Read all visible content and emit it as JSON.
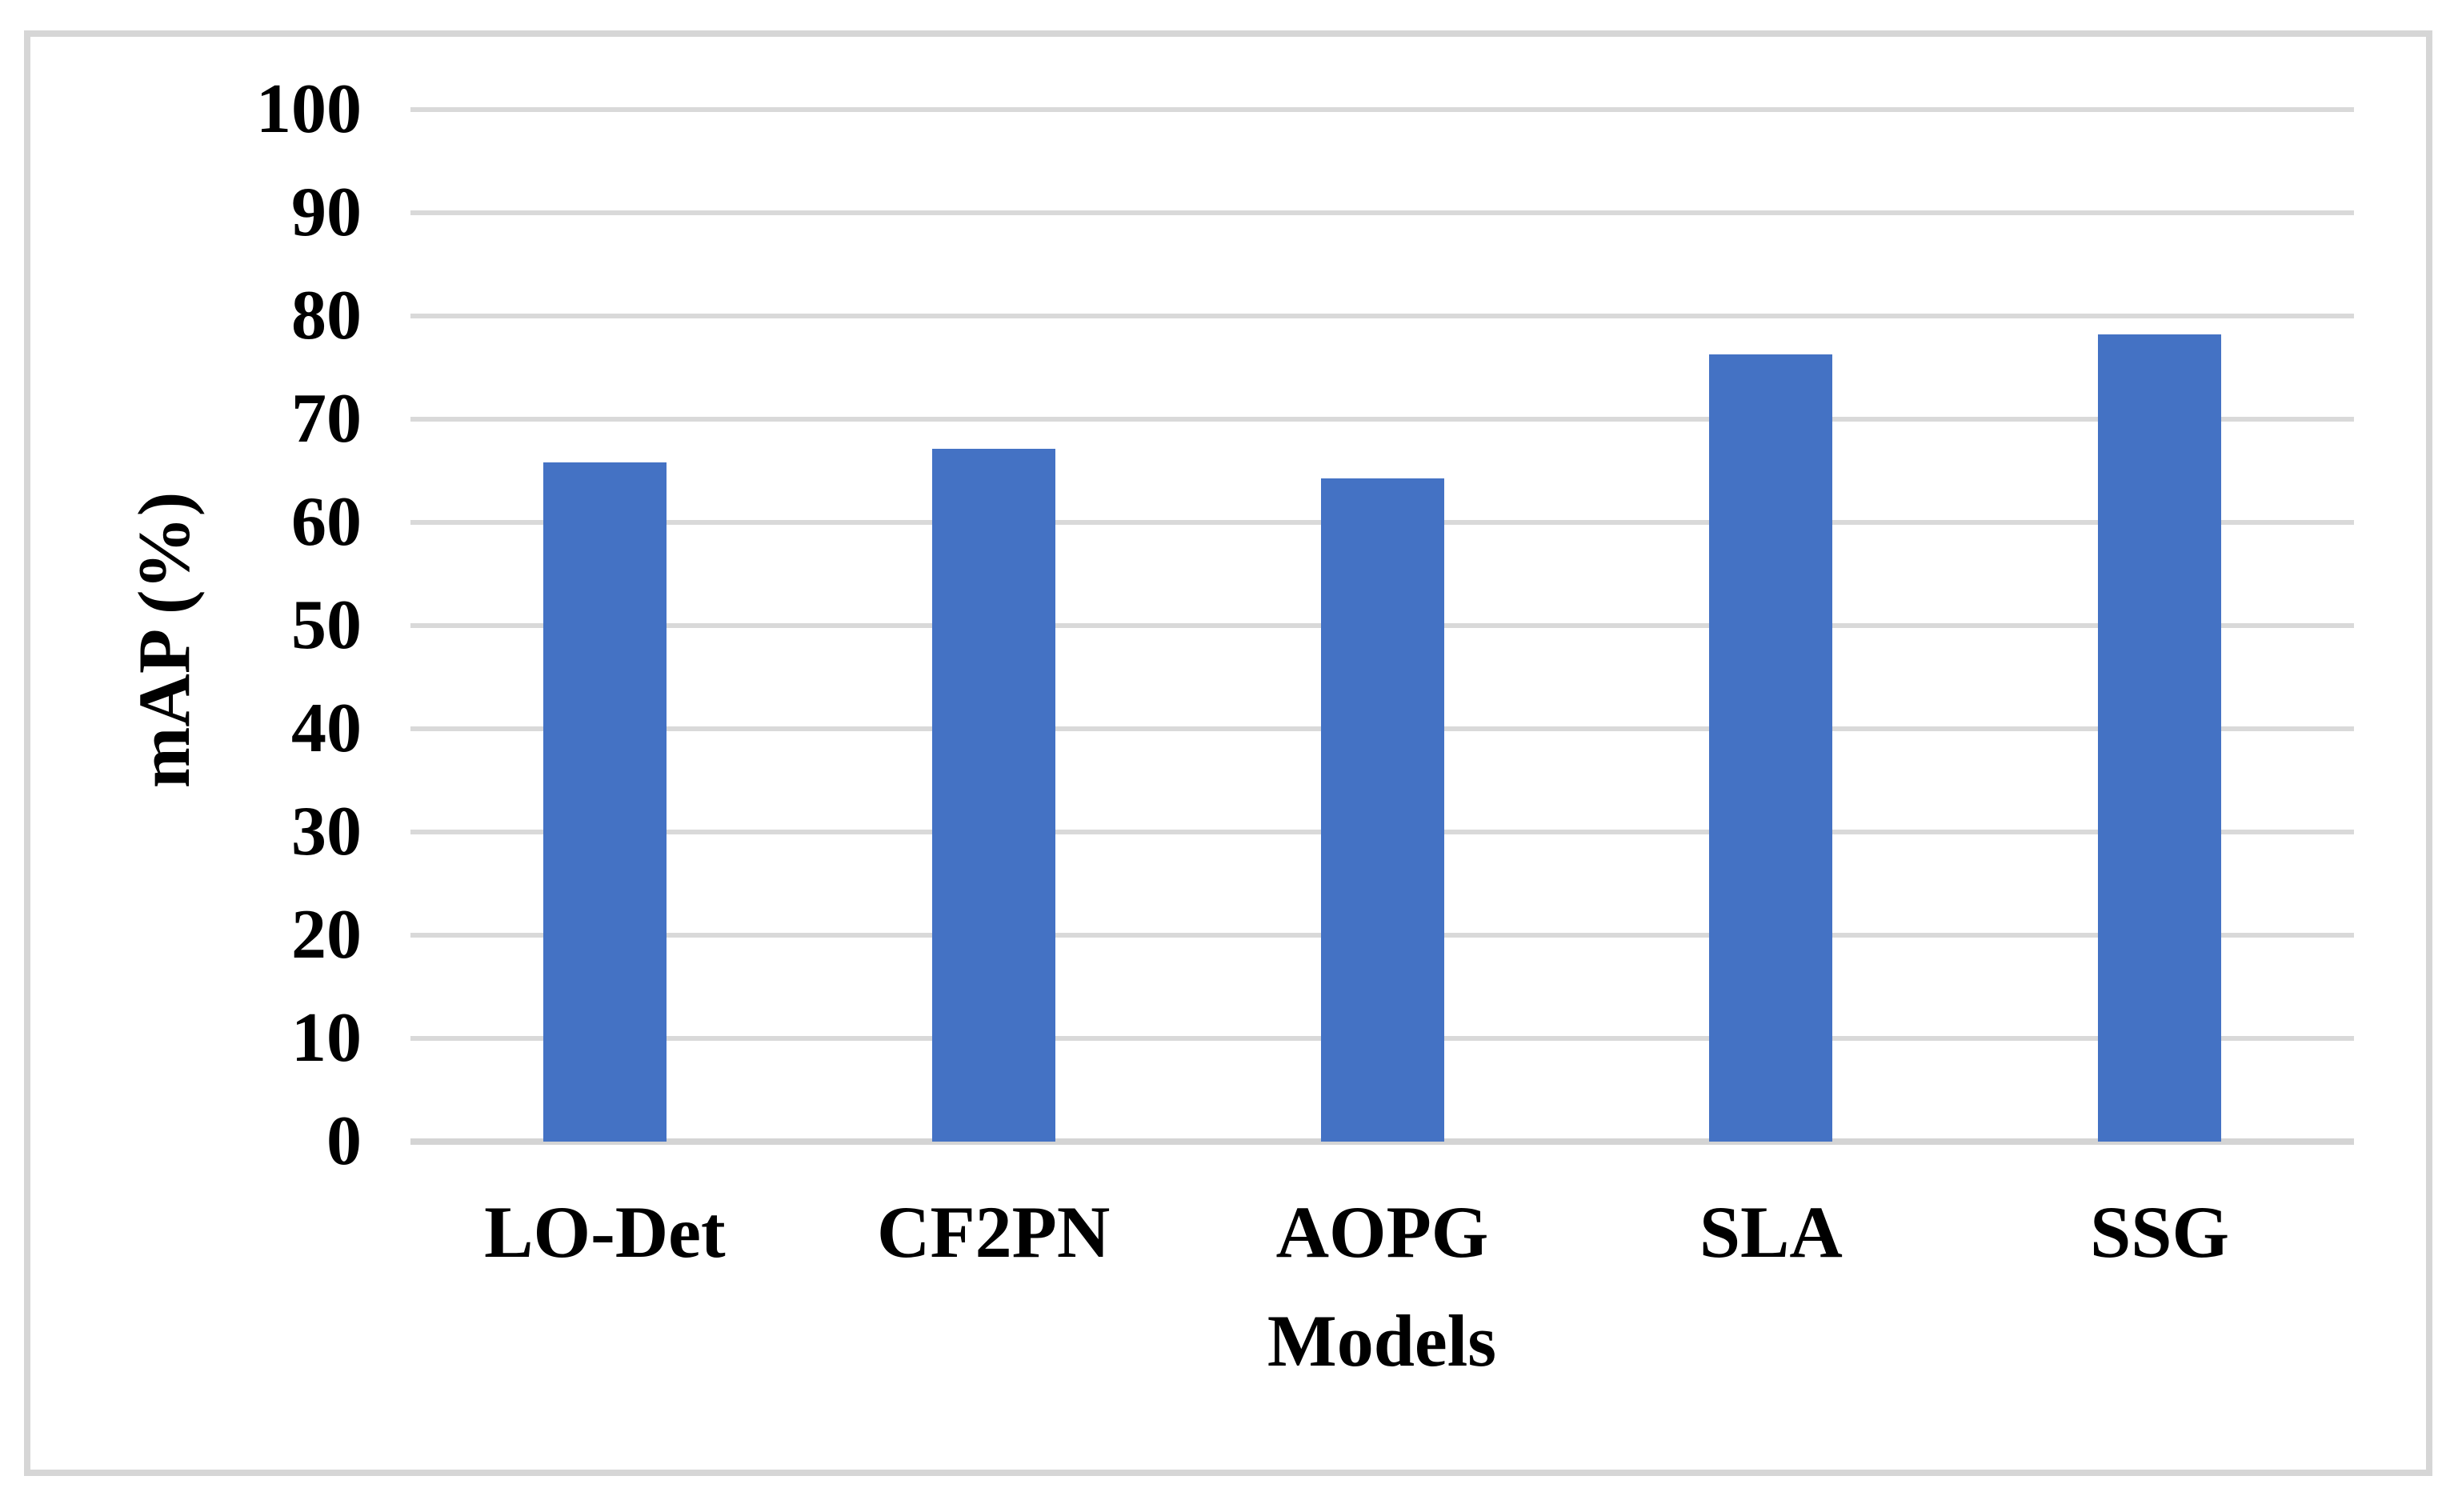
{
  "figure": {
    "background_color": "#FFFFFF",
    "frame_border_color": "#D6D6D6"
  },
  "chart_data": {
    "type": "bar",
    "title": "",
    "xlabel": "Models",
    "ylabel": "mAP (%)",
    "categories": [
      "LO-Det",
      "CF2PN",
      "AOPG",
      "SLA",
      "SSG"
    ],
    "values": [
      65.8,
      67.1,
      64.3,
      76.3,
      78.2
    ],
    "ylim": [
      0,
      100
    ],
    "yticks": [
      0,
      10,
      20,
      30,
      40,
      50,
      60,
      70,
      80,
      90,
      100
    ],
    "grid": "horizontal",
    "legend": "none",
    "bar_color": "#4472C4",
    "gridline_color": "#D9D9D9",
    "axis_line_color": "#D4D4D4",
    "text_color": "#000000"
  }
}
